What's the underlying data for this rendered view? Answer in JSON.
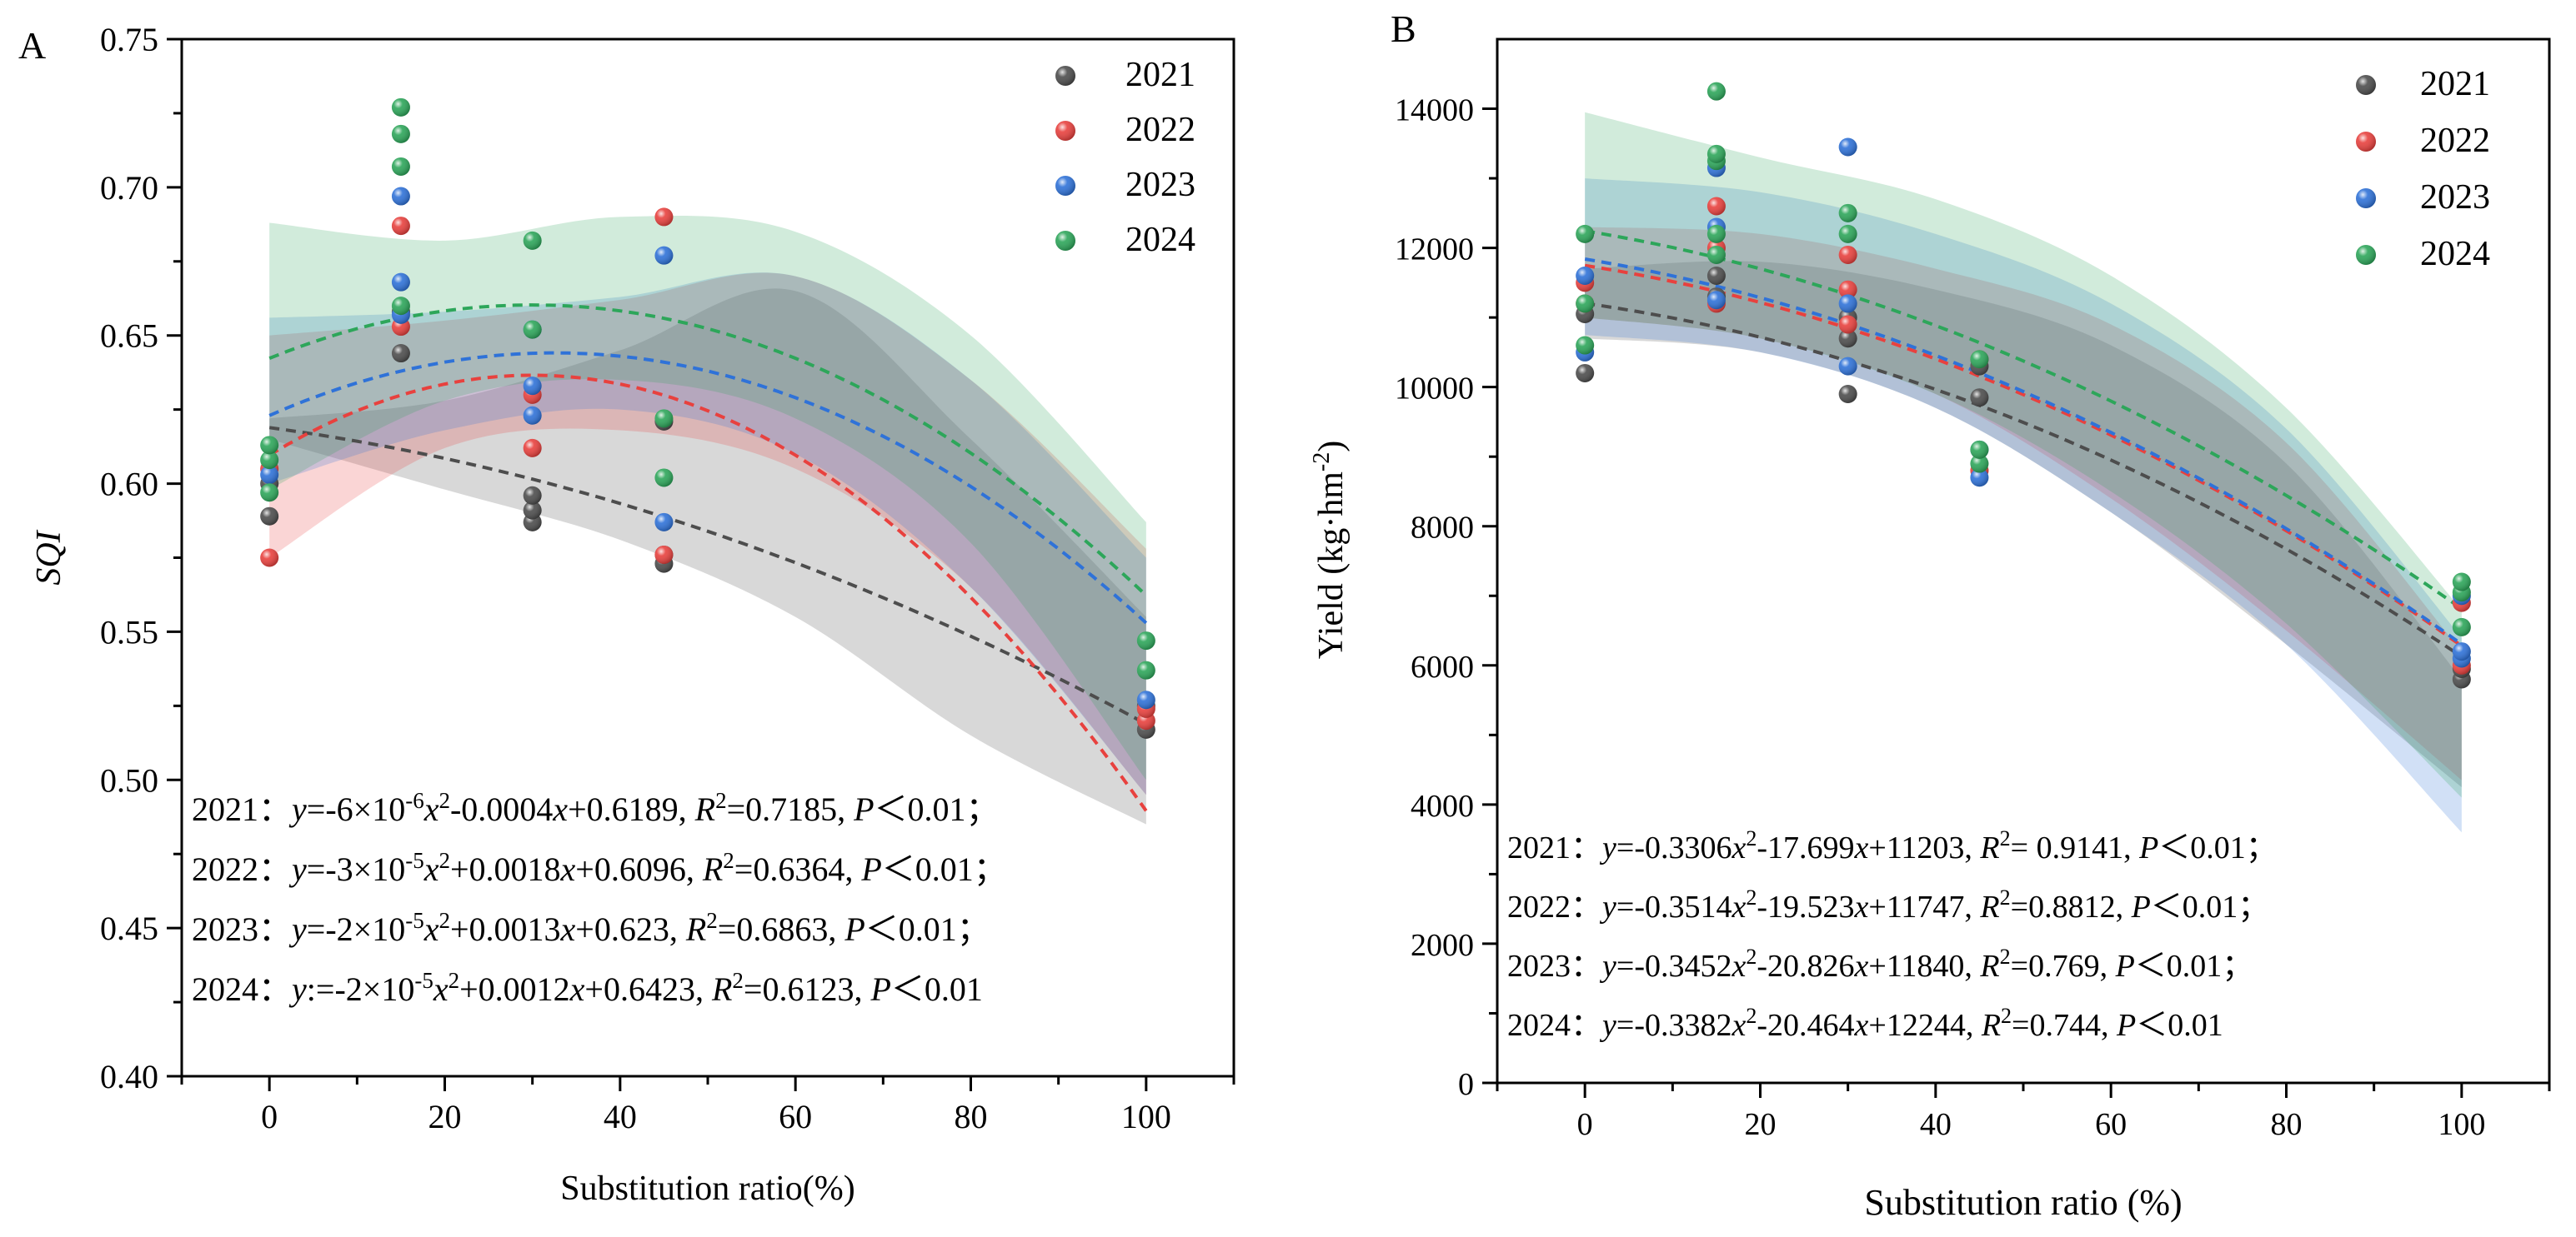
{
  "chart_data": [
    {
      "panel": "A",
      "type": "scatter",
      "xlabel": "Substitution ratio(%)",
      "ylabel": "SQI",
      "xlim": [
        -10,
        110
      ],
      "ylim": [
        0.4,
        0.75
      ],
      "xticks": [
        0,
        20,
        40,
        60,
        80,
        100
      ],
      "yticks": [
        0.4,
        0.45,
        0.5,
        0.55,
        0.6,
        0.65,
        0.7,
        0.75
      ],
      "legend_position": "top-right",
      "series": [
        {
          "name": "2021",
          "color": "#4d4d4d",
          "points": [
            [
              0,
              0.589
            ],
            [
              0,
              0.6
            ],
            [
              15,
              0.644
            ],
            [
              15,
              0.658
            ],
            [
              30,
              0.587
            ],
            [
              30,
              0.591
            ],
            [
              30,
              0.596
            ],
            [
              45,
              0.573
            ],
            [
              45,
              0.576
            ],
            [
              45,
              0.621
            ],
            [
              100,
              0.517
            ],
            [
              100,
              0.525
            ]
          ],
          "fit": {
            "a": -6e-06,
            "b": -0.0004,
            "c": 0.6189,
            "band_lo": [
              0.615,
              0.598,
              0.581,
              0.555,
              0.515,
              0.485
            ],
            "band_hi": [
              0.622,
              0.628,
              0.645,
              0.665,
              0.615,
              0.555
            ]
          }
        },
        {
          "name": "2022",
          "color": "#e8413e",
          "points": [
            [
              0,
              0.575
            ],
            [
              0,
              0.605
            ],
            [
              15,
              0.653
            ],
            [
              15,
              0.687
            ],
            [
              30,
              0.612
            ],
            [
              30,
              0.63
            ],
            [
              45,
              0.576
            ],
            [
              45,
              0.69
            ],
            [
              100,
              0.52
            ],
            [
              100,
              0.524
            ]
          ],
          "fit": {
            "a": -3e-05,
            "b": 0.0018,
            "c": 0.6096,
            "band_lo": [
              0.575,
              0.612,
              0.618,
              0.605,
              0.565,
              0.495
            ],
            "band_hi": [
              0.65,
              0.655,
              0.662,
              0.67,
              0.635,
              0.578
            ]
          }
        },
        {
          "name": "2023",
          "color": "#2f72d8",
          "points": [
            [
              0,
              0.603
            ],
            [
              15,
              0.657
            ],
            [
              15,
              0.668
            ],
            [
              15,
              0.697
            ],
            [
              30,
              0.623
            ],
            [
              30,
              0.633
            ],
            [
              30,
              0.652
            ],
            [
              45,
              0.587
            ],
            [
              45,
              0.677
            ],
            [
              100,
              0.527
            ]
          ],
          "fit": {
            "a": -2e-05,
            "b": 0.0013,
            "c": 0.623,
            "band_lo": [
              0.6,
              0.618,
              0.625,
              0.61,
              0.565,
              0.495
            ],
            "band_hi": [
              0.656,
              0.658,
              0.663,
              0.67,
              0.635,
              0.575
            ]
          }
        },
        {
          "name": "2024",
          "color": "#2da65a",
          "points": [
            [
              0,
              0.597
            ],
            [
              0,
              0.608
            ],
            [
              0,
              0.613
            ],
            [
              15,
              0.66
            ],
            [
              15,
              0.707
            ],
            [
              15,
              0.718
            ],
            [
              15,
              0.727
            ],
            [
              30,
              0.682
            ],
            [
              30,
              0.652
            ],
            [
              45,
              0.602
            ],
            [
              45,
              0.622
            ],
            [
              100,
              0.537
            ],
            [
              100,
              0.547
            ]
          ],
          "fit": {
            "a": -2e-05,
            "b": 0.0012,
            "c": 0.6423,
            "band_lo": [
              0.598,
              0.628,
              0.635,
              0.622,
              0.58,
              0.5
            ],
            "band_hi": [
              0.688,
              0.682,
              0.69,
              0.685,
              0.65,
              0.587
            ]
          }
        }
      ],
      "equations": [
        {
          "year": "2021：",
          "y": "y",
          "eq1": "=-6×10",
          "sup1": "-6",
          "x1": "x",
          "sup2": "2",
          "rest": "-0.0004",
          "x2": "x",
          "tail": "+0.6189, ",
          "R": "R",
          "r2sup": "2",
          "r2": "=0.7185, ",
          "P": "P",
          "pval": "＜0.01；"
        },
        {
          "year": "2022：",
          "y": "y",
          "eq1": "=-3×10",
          "sup1": "-5",
          "x1": "x",
          "sup2": "2",
          "rest": "+0.0018",
          "x2": "x",
          "tail": "+0.6096, ",
          "R": "R",
          "r2sup": "2",
          "r2": "=0.6364, ",
          "P": "P",
          "pval": "＜0.01；"
        },
        {
          "year": "2023：",
          "y": "y",
          "eq1": "=-2×10",
          "sup1": "-5",
          "x1": "x",
          "sup2": "2",
          "rest": "+0.0013",
          "x2": "x",
          "tail": "+0.623, ",
          "R": "R",
          "r2sup": "2",
          "r2": "=0.6863, ",
          "P": "P",
          "pval": "＜0.01；"
        },
        {
          "year": "2024：",
          "y": "y",
          "eq1": ":=-2×10",
          "sup1": "-5",
          "x1": "x",
          "sup2": "2",
          "rest": "+0.0012",
          "x2": "x",
          "tail": "+0.6423, ",
          "R": "R",
          "r2sup": "2",
          "r2": "=0.6123, ",
          "P": "P",
          "pval": "＜0.01"
        }
      ]
    },
    {
      "panel": "B",
      "type": "scatter",
      "xlabel": "Substitution ratio (%)",
      "ylabel": "Yield (kg·hm",
      "ylabel_sup": "-2",
      "ylabel_end": ")",
      "xlim": [
        -10,
        110
      ],
      "ylim": [
        0,
        15000
      ],
      "xticks": [
        0,
        20,
        40,
        60,
        80,
        100
      ],
      "yticks": [
        0,
        2000,
        4000,
        6000,
        8000,
        10000,
        12000,
        14000
      ],
      "legend_position": "top-right",
      "series": [
        {
          "name": "2021",
          "color": "#4d4d4d",
          "points": [
            [
              0,
              10200
            ],
            [
              0,
              11050
            ],
            [
              15,
              11300
            ],
            [
              15,
              11600
            ],
            [
              30,
              9900
            ],
            [
              30,
              10700
            ],
            [
              30,
              11000
            ],
            [
              45,
              9850
            ],
            [
              45,
              10300
            ],
            [
              100,
              5800
            ],
            [
              100,
              5950
            ]
          ],
          "fit": {
            "a": -0.3306,
            "b": -17.699,
            "c": 11203,
            "band_lo": [
              10700,
              10500,
              9700,
              8200,
              6300,
              4250
            ],
            "band_hi": [
              11700,
              11800,
              11400,
              10600,
              8900,
              5800
            ]
          }
        },
        {
          "name": "2022",
          "color": "#e8413e",
          "points": [
            [
              0,
              11200
            ],
            [
              0,
              11500
            ],
            [
              15,
              11200
            ],
            [
              15,
              12000
            ],
            [
              15,
              12600
            ],
            [
              30,
              10900
            ],
            [
              30,
              11400
            ],
            [
              30,
              11900
            ],
            [
              45,
              8800
            ],
            [
              45,
              10400
            ],
            [
              100,
              6000
            ],
            [
              100,
              6900
            ]
          ],
          "fit": {
            "a": -0.3514,
            "b": -19.523,
            "c": 11747,
            "band_lo": [
              11000,
              10700,
              9900,
              8400,
              6500,
              4350
            ],
            "band_hi": [
              12300,
              12200,
              11700,
              10900,
              9200,
              6200
            ]
          }
        },
        {
          "name": "2023",
          "color": "#2f72d8",
          "points": [
            [
              0,
              10500
            ],
            [
              0,
              11600
            ],
            [
              15,
              11250
            ],
            [
              15,
              12300
            ],
            [
              15,
              13150
            ],
            [
              30,
              10300
            ],
            [
              30,
              11200
            ],
            [
              30,
              13450
            ],
            [
              45,
              8700
            ],
            [
              45,
              9100
            ],
            [
              100,
              6100
            ],
            [
              100,
              6200
            ],
            [
              100,
              7000
            ]
          ],
          "fit": {
            "a": -0.3452,
            "b": -20.826,
            "c": 11840,
            "band_lo": [
              10750,
              10500,
              9700,
              8200,
              6300,
              3600
            ],
            "band_hi": [
              13000,
              12800,
              12200,
              11200,
              9400,
              6400
            ]
          }
        },
        {
          "name": "2024",
          "color": "#2da65a",
          "points": [
            [
              0,
              10600
            ],
            [
              0,
              11200
            ],
            [
              0,
              12200
            ],
            [
              15,
              11900
            ],
            [
              15,
              12200
            ],
            [
              15,
              13250
            ],
            [
              15,
              13350
            ],
            [
              15,
              14250
            ],
            [
              30,
              12200
            ],
            [
              30,
              12500
            ],
            [
              45,
              8900
            ],
            [
              45,
              9100
            ],
            [
              45,
              10400
            ],
            [
              100,
              6550
            ],
            [
              100,
              7050
            ],
            [
              100,
              7200
            ]
          ],
          "fit": {
            "a": -0.3382,
            "b": -20.464,
            "c": 12244,
            "band_lo": [
              11000,
              10700,
              9900,
              8500,
              6600,
              4100
            ],
            "band_hi": [
              13950,
              13300,
              12700,
              11600,
              9700,
              6800
            ]
          }
        }
      ],
      "equations": [
        {
          "year": "2021：",
          "y": "y",
          "eq1": "=-0.3306",
          "x1": "x",
          "sup2": "2",
          "rest": "-17.699",
          "x2": "x",
          "tail": "+11203, ",
          "R": "R",
          "r2sup": "2",
          "r2": "= 0.9141, ",
          "P": "P",
          "pval": "＜0.01；"
        },
        {
          "year": "2022：",
          "y": "y",
          "eq1": "=-0.3514",
          "x1": "x",
          "sup2": "2",
          "rest": "-19.523",
          "x2": "x",
          "tail": "+11747, ",
          "R": "R",
          "r2sup": "2",
          "r2": "=0.8812, ",
          "P": "P",
          "pval": "＜0.01；"
        },
        {
          "year": "2023：",
          "y": "y",
          "eq1": "=-0.3452",
          "x1": "x",
          "sup2": "2",
          "rest": "-20.826",
          "x2": "x",
          "tail": "+11840, ",
          "R": "R",
          "r2sup": "2",
          "r2": "=0.769, ",
          "P": "P",
          "pval": "＜0.01；"
        },
        {
          "year": "2024：",
          "y": "y",
          "eq1": "=-0.3382",
          "x1": "x",
          "sup2": "2",
          "rest": "-20.464",
          "x2": "x",
          "tail": "+12244, ",
          "R": "R",
          "r2sup": "2",
          "r2": "=0.744, ",
          "P": "P",
          "pval": "＜0.01"
        }
      ]
    }
  ]
}
